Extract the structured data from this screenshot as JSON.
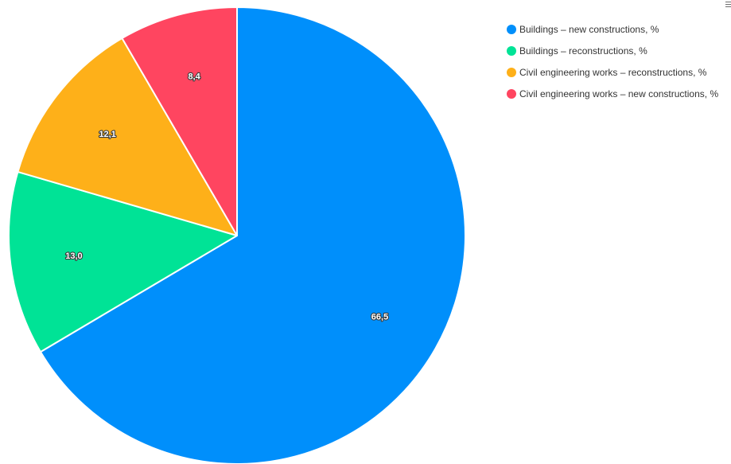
{
  "chart_data": {
    "type": "pie",
    "slices": [
      {
        "name": "Buildings – new constructions, %",
        "value": 66.5,
        "label": "66,5",
        "color": "#008ffb"
      },
      {
        "name": "Buildings – reconstructions, %",
        "value": 13.0,
        "label": "13,0",
        "color": "#00e396"
      },
      {
        "name": "Civil engineering works – reconstructions, %",
        "value": 12.1,
        "label": "12,1",
        "color": "#feb019"
      },
      {
        "name": "Civil engineering works – new constructions, %",
        "value": 8.4,
        "label": "8,4",
        "color": "#ff4560"
      }
    ],
    "legend_position": "top-right",
    "start_angle": "top (12 o'clock)",
    "direction": "clockwise"
  },
  "toolbar": {
    "menu_icon": "hamburger-menu-icon"
  }
}
